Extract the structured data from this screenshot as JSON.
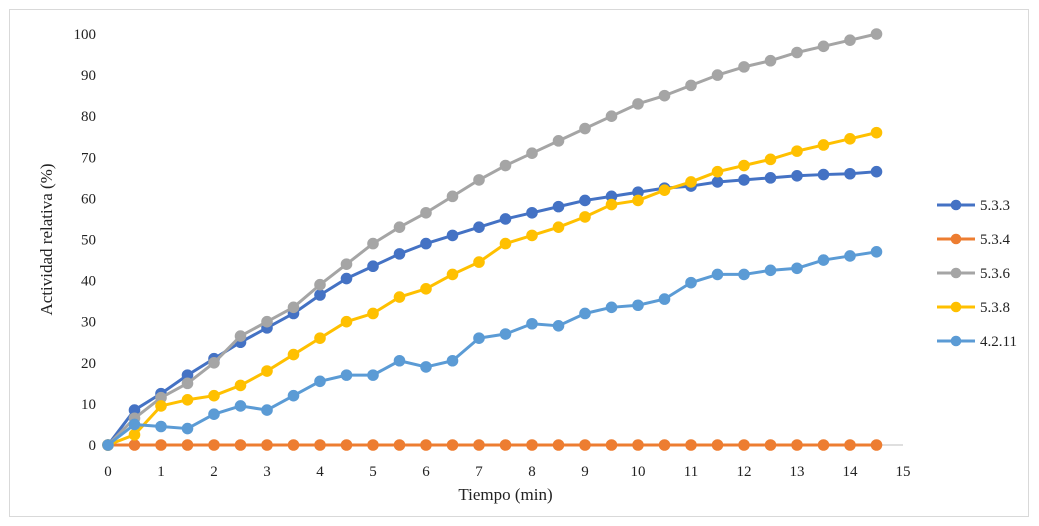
{
  "chart_data": {
    "type": "line",
    "title": "",
    "xlabel": "Tiempo (min)",
    "ylabel": "Actividad relativa (%)",
    "xlim": [
      0,
      15
    ],
    "ylim": [
      0,
      100
    ],
    "xticks": [
      0,
      1,
      2,
      3,
      4,
      5,
      6,
      7,
      8,
      9,
      10,
      11,
      12,
      13,
      14,
      15
    ],
    "yticks": [
      0,
      10,
      20,
      30,
      40,
      50,
      60,
      70,
      80,
      90,
      100
    ],
    "grid": false,
    "legend_position": "right",
    "x": [
      0,
      0.5,
      1,
      1.5,
      2,
      2.5,
      3,
      3.5,
      4,
      4.5,
      5,
      5.5,
      6,
      6.5,
      7,
      7.5,
      8,
      8.5,
      9,
      9.5,
      10,
      10.5,
      11,
      11.5,
      12,
      12.5,
      13,
      13.5,
      14,
      14.5
    ],
    "series": [
      {
        "name": "5.3.3",
        "color": "#4472c4",
        "values": [
          0,
          8.5,
          12.5,
          17,
          21,
          25,
          28.5,
          32,
          36.5,
          40.5,
          43.5,
          46.5,
          49,
          51,
          53,
          55,
          56.5,
          58,
          59.5,
          60.5,
          61.5,
          62.5,
          63,
          64,
          64.5,
          65,
          65.5,
          65.8,
          66,
          66.5
        ]
      },
      {
        "name": "5.3.4",
        "color": "#ed7d31",
        "values": [
          0,
          0,
          0,
          0,
          0,
          0,
          0,
          0,
          0,
          0,
          0,
          0,
          0,
          0,
          0,
          0,
          0,
          0,
          0,
          0,
          0,
          0,
          0,
          0,
          0,
          0,
          0,
          0,
          0,
          0
        ]
      },
      {
        "name": "5.3.6",
        "color": "#a5a5a5",
        "values": [
          0,
          6.5,
          11.5,
          15,
          20,
          26.5,
          30,
          33.5,
          39,
          44,
          49,
          53,
          56.5,
          60.5,
          64.5,
          68,
          71,
          74,
          77,
          80,
          83,
          85,
          87.5,
          90,
          92,
          93.5,
          95.5,
          97,
          98.5,
          100
        ]
      },
      {
        "name": "5.3.8",
        "color": "#ffc000",
        "values": [
          0,
          2.5,
          9.5,
          11,
          12,
          14.5,
          18,
          22,
          26,
          30,
          32,
          36,
          38,
          41.5,
          44.5,
          49,
          51,
          53,
          55.5,
          58.5,
          59.5,
          62,
          64,
          66.5,
          68,
          69.5,
          71.5,
          73,
          74.5,
          76
        ]
      },
      {
        "name": "4.2.11",
        "color": "#5b9bd5",
        "values": [
          0,
          5,
          4.5,
          4,
          7.5,
          9.5,
          8.5,
          12,
          15.5,
          17,
          17,
          20.5,
          19,
          20.5,
          26,
          27,
          29.5,
          29,
          32,
          33.5,
          34,
          35.5,
          39.5,
          41.5,
          41.5,
          42.5,
          43,
          45,
          46,
          47
        ]
      }
    ]
  }
}
